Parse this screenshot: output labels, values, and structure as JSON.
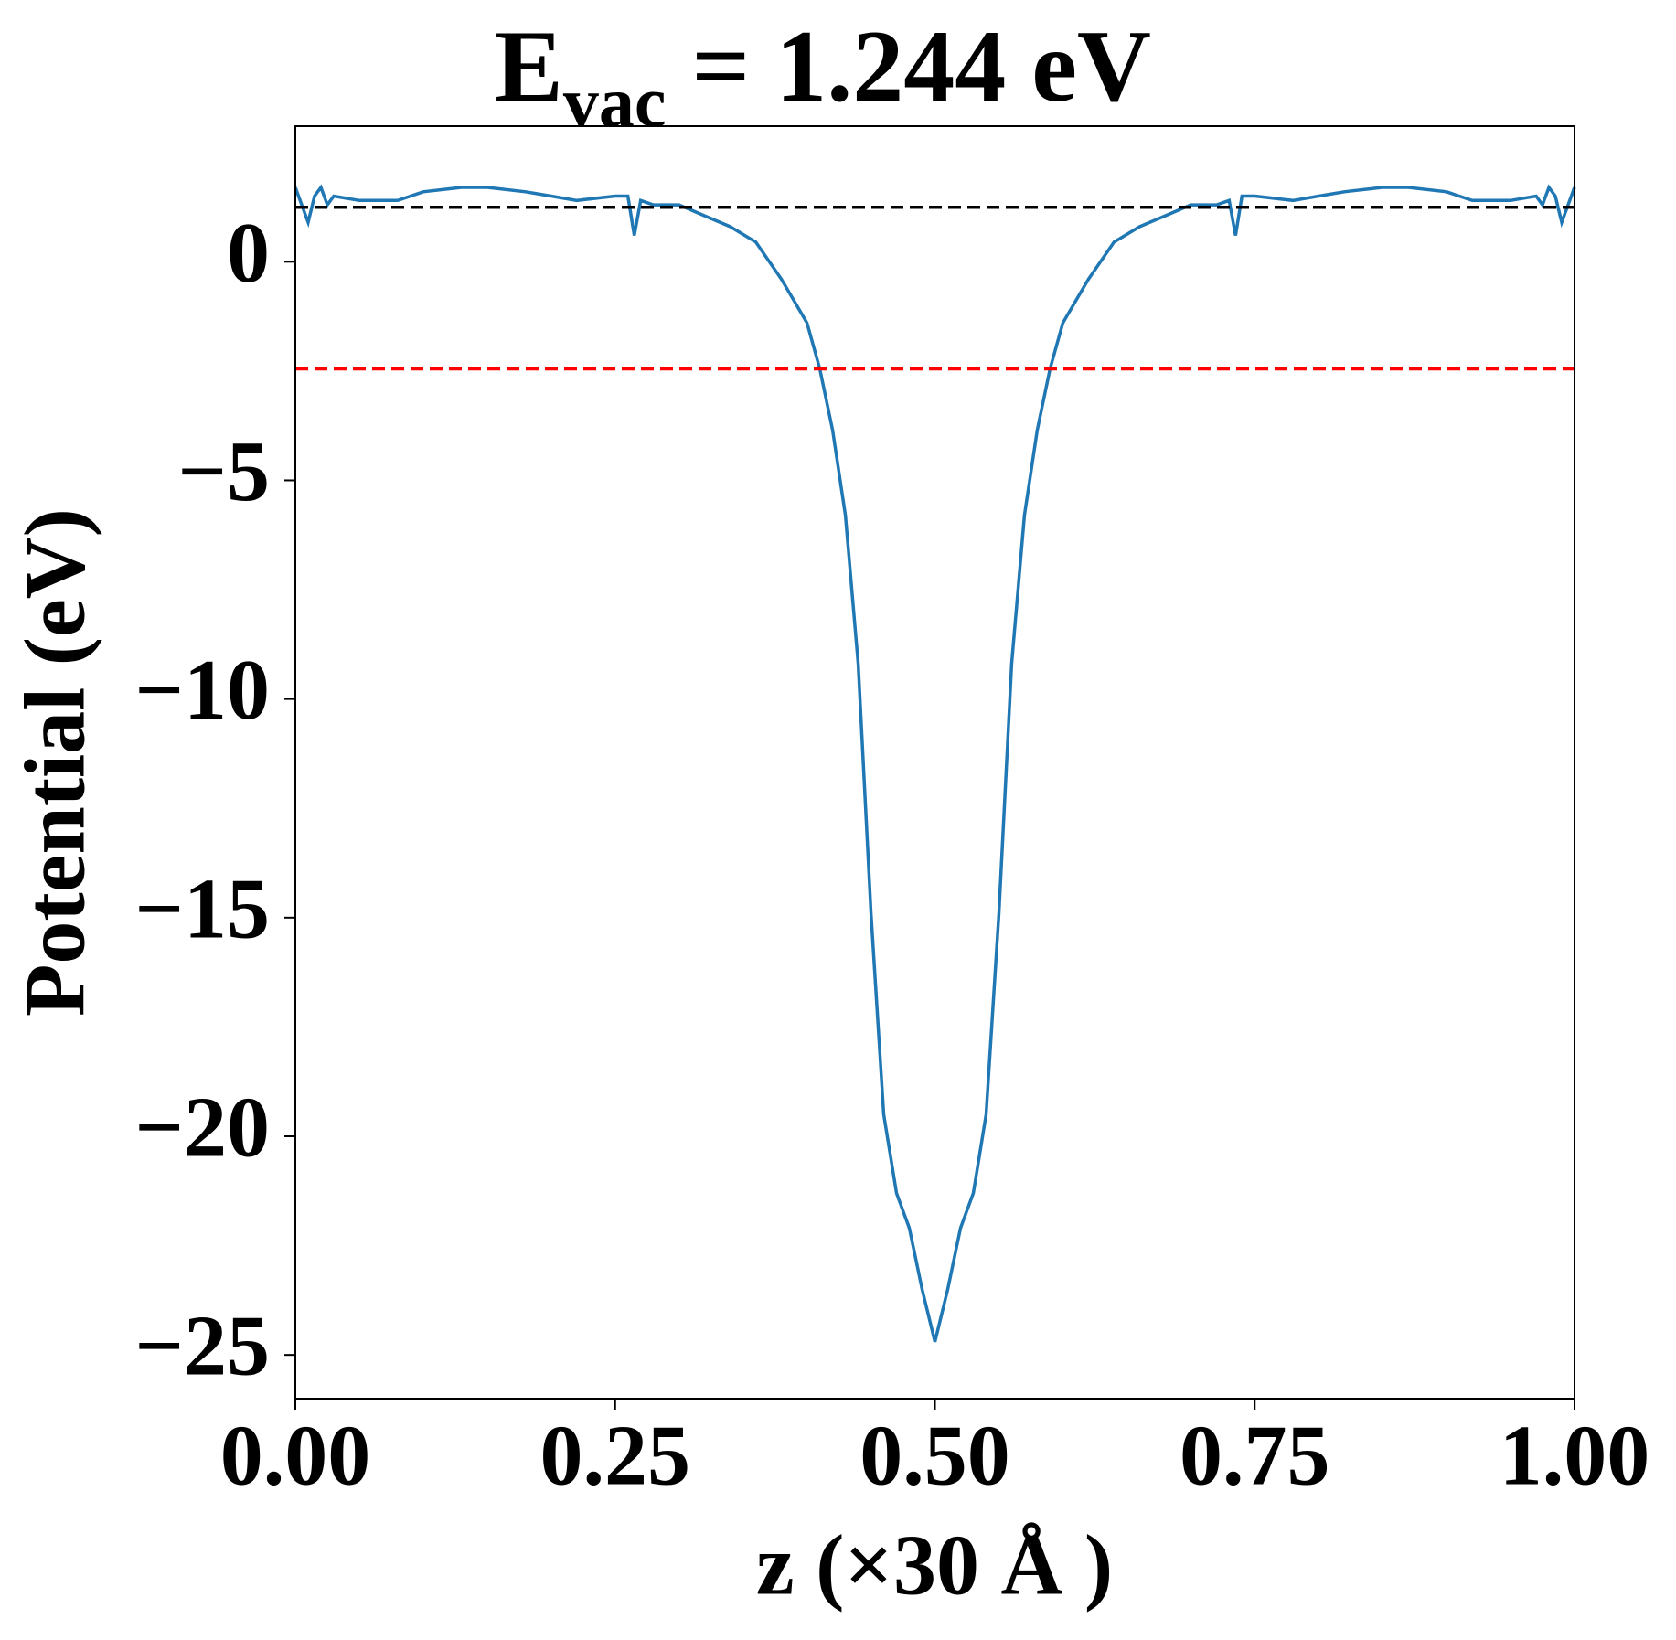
{
  "chart_data": {
    "type": "line",
    "title": {
      "main": "E",
      "sub": "vac",
      "rest": " = 1.244 eV"
    },
    "xlabel": "z (×30 Å )",
    "ylabel": "Potential (eV)",
    "xlim": [
      0,
      1
    ],
    "ylim": [
      -26,
      3.1
    ],
    "xticks": [
      {
        "value": 0,
        "label": "0.00"
      },
      {
        "value": 0.25,
        "label": "0.25"
      },
      {
        "value": 0.5,
        "label": "0.50"
      },
      {
        "value": 0.75,
        "label": "0.75"
      },
      {
        "value": 1,
        "label": "1.00"
      }
    ],
    "yticks": [
      {
        "value": -25,
        "label": "−25"
      },
      {
        "value": -20,
        "label": "−20"
      },
      {
        "value": -15,
        "label": "−15"
      },
      {
        "value": -10,
        "label": "−10"
      },
      {
        "value": -5,
        "label": "−5"
      },
      0
    ],
    "hlines": [
      {
        "value": 1.244,
        "color": "#000000"
      },
      {
        "value": -2.45,
        "color": "#ff0000"
      }
    ],
    "x": [
      0,
      0.01,
      0.015,
      0.02,
      0.025,
      0.03,
      0.05,
      0.08,
      0.1,
      0.13,
      0.15,
      0.18,
      0.2,
      0.22,
      0.25,
      0.26,
      0.265,
      0.27,
      0.28,
      0.3,
      0.32,
      0.34,
      0.36,
      0.38,
      0.39,
      0.4,
      0.41,
      0.42,
      0.43,
      0.44,
      0.45,
      0.46,
      0.47,
      0.48,
      0.49,
      0.5,
      0.51,
      0.52,
      0.53,
      0.54,
      0.55,
      0.56,
      0.57,
      0.58,
      0.59,
      0.6,
      0.61,
      0.62,
      0.64,
      0.66,
      0.68,
      0.7,
      0.72,
      0.73,
      0.735,
      0.74,
      0.75,
      0.78,
      0.8,
      0.82,
      0.85,
      0.87,
      0.9,
      0.92,
      0.95,
      0.97,
      0.975,
      0.98,
      0.985,
      0.99,
      1.0
    ],
    "series": [
      {
        "color": "#1f77b4",
        "values": [
          1.7,
          0.9,
          1.5,
          1.7,
          1.3,
          1.5,
          1.4,
          1.4,
          1.6,
          1.7,
          1.7,
          1.6,
          1.5,
          1.4,
          1.5,
          1.5,
          0.6,
          1.4,
          1.3,
          1.3,
          1.05,
          0.8,
          0.45,
          -0.4,
          -0.9,
          -1.4,
          -2.45,
          -3.85,
          -5.8,
          -9.2,
          -14.9,
          -19.5,
          -21.3,
          -22.1,
          -23.5,
          -24.7,
          -23.5,
          -22.1,
          -21.3,
          -19.5,
          -14.9,
          -9.2,
          -5.8,
          -3.85,
          -2.45,
          -1.4,
          -0.9,
          -0.4,
          0.45,
          0.8,
          1.05,
          1.3,
          1.3,
          1.4,
          0.6,
          1.5,
          1.5,
          1.4,
          1.5,
          1.6,
          1.7,
          1.7,
          1.6,
          1.4,
          1.4,
          1.5,
          1.3,
          1.7,
          1.5,
          0.9,
          1.7
        ]
      }
    ]
  }
}
